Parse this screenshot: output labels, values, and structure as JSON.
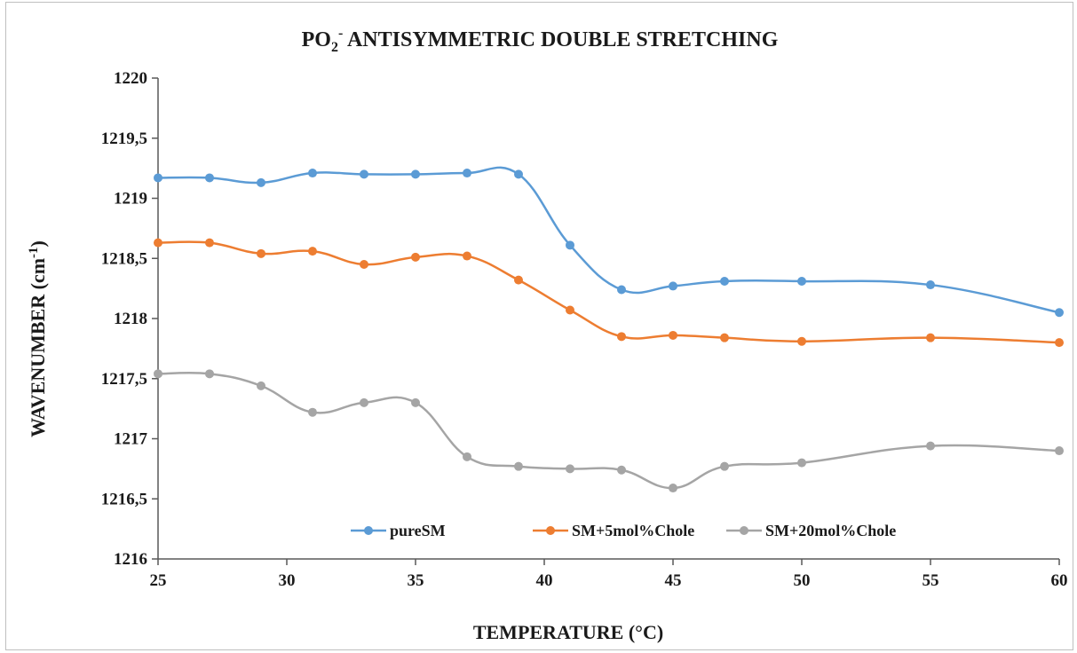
{
  "chart_data": {
    "type": "line",
    "title": "PO2- ANTISYMMETRIC DOUBLE STRETCHING",
    "title_parts": {
      "main": "PO",
      "sub": "2",
      "sup": "-",
      "rest": " ANTISYMMETRIC DOUBLE STRETCHING"
    },
    "xlabel": "TEMPERATURE (°C)",
    "ylabel": "WAVENUMBER (cm-1)",
    "ylabel_parts": {
      "main": "WAVENUMBER  (cm",
      "sup": "-1",
      "end": ")"
    },
    "xlim": [
      25,
      60
    ],
    "ylim": [
      1216,
      1220
    ],
    "x_ticks": [
      25,
      30,
      35,
      40,
      45,
      50,
      55,
      60
    ],
    "x_tick_labels": [
      "25",
      "30",
      "35",
      "40",
      "45",
      "50",
      "55",
      "60"
    ],
    "y_ticks": [
      1216,
      1216.5,
      1217,
      1217.5,
      1218,
      1218.5,
      1219,
      1219.5,
      1220
    ],
    "y_tick_labels": [
      "1216",
      "1216,5",
      "1217",
      "1217,5",
      "1218",
      "1218,5",
      "1219",
      "1219,5",
      "1220"
    ],
    "grid": false,
    "legend_position": "bottom-center",
    "x": [
      25,
      27,
      29,
      31,
      33,
      35,
      37,
      39,
      41,
      43,
      45,
      47,
      50,
      55,
      60
    ],
    "series": [
      {
        "name": "pureSM",
        "color": "#5b9bd5",
        "values": [
          1219.17,
          1219.17,
          1219.13,
          1219.21,
          1219.2,
          1219.2,
          1219.21,
          1219.2,
          1218.61,
          1218.24,
          1218.27,
          1218.31,
          1218.31,
          1218.28,
          1218.05
        ]
      },
      {
        "name": "SM+5mol%Chole",
        "color": "#ed7d31",
        "values": [
          1218.63,
          1218.63,
          1218.54,
          1218.56,
          1218.45,
          1218.51,
          1218.52,
          1218.32,
          1218.07,
          1217.85,
          1217.86,
          1217.84,
          1217.81,
          1217.84,
          1217.8
        ]
      },
      {
        "name": "SM+20mol%Chole",
        "color": "#a5a5a5",
        "values": [
          1217.54,
          1217.54,
          1217.44,
          1217.22,
          1217.3,
          1217.3,
          1216.85,
          1216.77,
          1216.75,
          1216.74,
          1216.59,
          1216.77,
          1216.8,
          1216.94,
          1216.9
        ]
      }
    ]
  }
}
